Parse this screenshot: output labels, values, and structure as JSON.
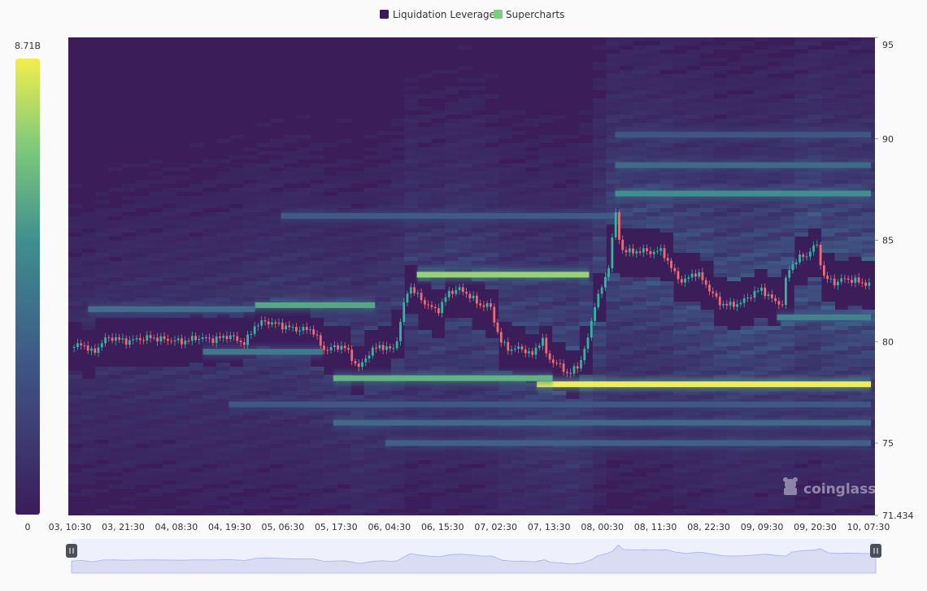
{
  "legend": {
    "items": [
      {
        "label": "Liquidation Leverage",
        "color": "#3b1a5a"
      },
      {
        "label": "Supercharts",
        "color": "#7ccf7c"
      }
    ]
  },
  "colorbar": {
    "max_label": "8.71B",
    "min_label": "0"
  },
  "watermark": {
    "text": "coinglass"
  },
  "colors": {
    "heat_low": "#3b1d5a",
    "heat_mid": "#3f7f8f",
    "heat_high": "#f2ee4b",
    "candle_up": "#2fb6a0",
    "candle_down": "#ef6a74",
    "navigator_fill": "#d9dcf3",
    "navigator_line": "#a9b1e6"
  },
  "chart_data": {
    "type": "heatmap",
    "title": "",
    "xlabel": "",
    "ylabel": "",
    "ylim": [
      71.434,
      95
    ],
    "y_ticks": [
      71.434,
      75,
      80,
      85,
      90,
      95
    ],
    "y_tick_labels": [
      "71.434",
      "75",
      "80",
      "85",
      "90",
      "95"
    ],
    "x_ticks": [
      "03, 10:30",
      "03, 21:30",
      "04, 08:30",
      "04, 19:30",
      "05, 06:30",
      "05, 17:30",
      "06, 04:30",
      "06, 15:30",
      "07, 02:30",
      "07, 13:30",
      "08, 00:30",
      "08, 11:30",
      "08, 22:30",
      "09, 09:30",
      "09, 20:30",
      "10, 07:30"
    ],
    "x_range_ticks": [
      0,
      15.3
    ],
    "value_range": [
      0,
      8710000000
    ],
    "legend_position": "top-center",
    "price_series": [
      {
        "x": 0.0,
        "y": 79.7
      },
      {
        "x": 0.2,
        "y": 79.9
      },
      {
        "x": 0.4,
        "y": 79.4
      },
      {
        "x": 0.6,
        "y": 80.1
      },
      {
        "x": 0.8,
        "y": 80.2
      },
      {
        "x": 1.0,
        "y": 80.0
      },
      {
        "x": 1.2,
        "y": 80.1
      },
      {
        "x": 1.5,
        "y": 80.2
      },
      {
        "x": 1.8,
        "y": 80.1
      },
      {
        "x": 2.1,
        "y": 80.0
      },
      {
        "x": 2.4,
        "y": 80.2
      },
      {
        "x": 2.7,
        "y": 80.1
      },
      {
        "x": 3.0,
        "y": 80.3
      },
      {
        "x": 3.3,
        "y": 79.9
      },
      {
        "x": 3.5,
        "y": 80.8
      },
      {
        "x": 3.7,
        "y": 81.0
      },
      {
        "x": 4.0,
        "y": 80.8
      },
      {
        "x": 4.3,
        "y": 80.6
      },
      {
        "x": 4.6,
        "y": 80.6
      },
      {
        "x": 4.8,
        "y": 79.6
      },
      {
        "x": 5.0,
        "y": 79.7
      },
      {
        "x": 5.2,
        "y": 79.8
      },
      {
        "x": 5.4,
        "y": 79.0
      },
      {
        "x": 5.5,
        "y": 78.7
      },
      {
        "x": 5.7,
        "y": 79.5
      },
      {
        "x": 5.9,
        "y": 79.8
      },
      {
        "x": 6.1,
        "y": 79.6
      },
      {
        "x": 6.2,
        "y": 79.8
      },
      {
        "x": 6.3,
        "y": 81.2
      },
      {
        "x": 6.45,
        "y": 82.8
      },
      {
        "x": 6.6,
        "y": 82.3
      },
      {
        "x": 6.8,
        "y": 81.8
      },
      {
        "x": 7.0,
        "y": 81.5
      },
      {
        "x": 7.2,
        "y": 82.4
      },
      {
        "x": 7.4,
        "y": 82.6
      },
      {
        "x": 7.6,
        "y": 82.3
      },
      {
        "x": 7.8,
        "y": 81.8
      },
      {
        "x": 8.0,
        "y": 81.8
      },
      {
        "x": 8.2,
        "y": 80.0
      },
      {
        "x": 8.4,
        "y": 79.6
      },
      {
        "x": 8.6,
        "y": 79.7
      },
      {
        "x": 8.8,
        "y": 79.3
      },
      {
        "x": 9.0,
        "y": 80.2
      },
      {
        "x": 9.1,
        "y": 79.2
      },
      {
        "x": 9.3,
        "y": 78.9
      },
      {
        "x": 9.5,
        "y": 78.4
      },
      {
        "x": 9.7,
        "y": 78.8
      },
      {
        "x": 9.9,
        "y": 80.3
      },
      {
        "x": 10.0,
        "y": 81.8
      },
      {
        "x": 10.1,
        "y": 82.4
      },
      {
        "x": 10.2,
        "y": 83.0
      },
      {
        "x": 10.3,
        "y": 84.0
      },
      {
        "x": 10.4,
        "y": 86.5
      },
      {
        "x": 10.5,
        "y": 84.6
      },
      {
        "x": 10.7,
        "y": 84.4
      },
      {
        "x": 10.9,
        "y": 84.5
      },
      {
        "x": 11.1,
        "y": 84.4
      },
      {
        "x": 11.3,
        "y": 84.5
      },
      {
        "x": 11.5,
        "y": 83.5
      },
      {
        "x": 11.7,
        "y": 82.9
      },
      {
        "x": 11.9,
        "y": 83.4
      },
      {
        "x": 12.0,
        "y": 83.3
      },
      {
        "x": 12.2,
        "y": 82.6
      },
      {
        "x": 12.4,
        "y": 81.9
      },
      {
        "x": 12.6,
        "y": 81.8
      },
      {
        "x": 12.8,
        "y": 81.9
      },
      {
        "x": 13.0,
        "y": 82.3
      },
      {
        "x": 13.2,
        "y": 82.6
      },
      {
        "x": 13.4,
        "y": 82.1
      },
      {
        "x": 13.6,
        "y": 81.8
      },
      {
        "x": 13.7,
        "y": 83.5
      },
      {
        "x": 13.9,
        "y": 84.1
      },
      {
        "x": 14.1,
        "y": 84.3
      },
      {
        "x": 14.25,
        "y": 84.9
      },
      {
        "x": 14.4,
        "y": 83.2
      },
      {
        "x": 14.6,
        "y": 82.9
      },
      {
        "x": 14.8,
        "y": 83.1
      },
      {
        "x": 15.0,
        "y": 83.0
      },
      {
        "x": 15.3,
        "y": 82.8
      }
    ],
    "liquidation_bands": [
      {
        "price": 77.9,
        "x_start": 8.9,
        "x_end": 15.3,
        "intensity": 1.0
      },
      {
        "price": 78.2,
        "x_start": 5.0,
        "x_end": 9.2,
        "intensity": 0.72
      },
      {
        "price": 83.3,
        "x_start": 6.6,
        "x_end": 9.9,
        "intensity": 0.85
      },
      {
        "price": 81.8,
        "x_start": 3.5,
        "x_end": 5.8,
        "intensity": 0.68
      },
      {
        "price": 81.6,
        "x_start": 0.3,
        "x_end": 3.5,
        "intensity": 0.45
      },
      {
        "price": 79.5,
        "x_start": 2.5,
        "x_end": 4.8,
        "intensity": 0.5
      },
      {
        "price": 81.2,
        "x_start": 13.5,
        "x_end": 15.3,
        "intensity": 0.55
      },
      {
        "price": 87.3,
        "x_start": 10.4,
        "x_end": 15.3,
        "intensity": 0.6
      },
      {
        "price": 86.2,
        "x_start": 4.0,
        "x_end": 10.4,
        "intensity": 0.35
      },
      {
        "price": 76.0,
        "x_start": 5.0,
        "x_end": 15.3,
        "intensity": 0.42
      },
      {
        "price": 75.0,
        "x_start": 6.0,
        "x_end": 15.3,
        "intensity": 0.38
      },
      {
        "price": 88.7,
        "x_start": 10.4,
        "x_end": 15.3,
        "intensity": 0.42
      },
      {
        "price": 90.2,
        "x_start": 10.4,
        "x_end": 15.3,
        "intensity": 0.32
      },
      {
        "price": 76.9,
        "x_start": 3.0,
        "x_end": 15.3,
        "intensity": 0.33
      }
    ]
  }
}
